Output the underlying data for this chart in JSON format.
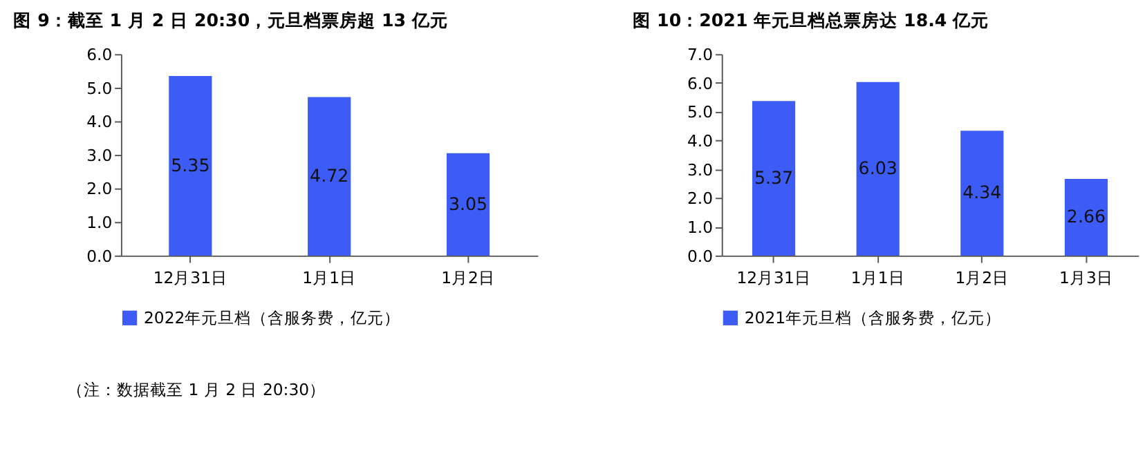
{
  "chart_data": [
    {
      "type": "bar",
      "title": "图 9：截至 1 月 2 日 20:30，元旦档票房超 13 亿元",
      "categories": [
        "12月31日",
        "1月1日",
        "1月2日"
      ],
      "series": [
        {
          "name": "2022年元旦档（含服务费，亿元）",
          "color": "#3d5cf5",
          "values": [
            5.35,
            4.72,
            3.05
          ]
        }
      ],
      "ylim": [
        0,
        6
      ],
      "yticks": [
        {
          "value": 0,
          "label": "0.0"
        },
        {
          "value": 1,
          "label": "1.0"
        },
        {
          "value": 2,
          "label": "2.0"
        },
        {
          "value": 3,
          "label": "3.0"
        },
        {
          "value": 4,
          "label": "4.0"
        },
        {
          "value": 5,
          "label": "5.0"
        },
        {
          "value": 6,
          "label": "6.0"
        }
      ],
      "data_labels": true,
      "grid": false,
      "legend": "bottom",
      "annotations": [
        "（注：数据截至 1 月 2 日 20:30）"
      ]
    },
    {
      "type": "bar",
      "title": "图 10：2021 年元旦档总票房达 18.4 亿元",
      "categories": [
        "12月31日",
        "1月1日",
        "1月2日",
        "1月3日"
      ],
      "series": [
        {
          "name": "2021年元旦档（含服务费，亿元）",
          "color": "#3d5cf5",
          "values": [
            5.37,
            6.03,
            4.34,
            2.66
          ]
        }
      ],
      "ylim": [
        0,
        7
      ],
      "yticks": [
        {
          "value": 0,
          "label": "0.0"
        },
        {
          "value": 1,
          "label": "1.0"
        },
        {
          "value": 2,
          "label": "2.0"
        },
        {
          "value": 3,
          "label": "3.0"
        },
        {
          "value": 4,
          "label": "4.0"
        },
        {
          "value": 5,
          "label": "5.0"
        },
        {
          "value": 6,
          "label": "6.0"
        },
        {
          "value": 7,
          "label": "7.0"
        }
      ],
      "data_labels": true,
      "grid": false,
      "legend": "bottom"
    }
  ]
}
